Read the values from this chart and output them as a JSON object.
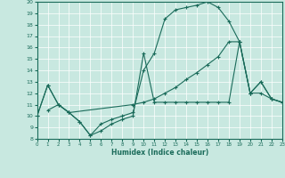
{
  "xlabel": "Humidex (Indice chaleur)",
  "xlim": [
    0,
    23
  ],
  "ylim": [
    8,
    20
  ],
  "xticks": [
    0,
    1,
    2,
    3,
    4,
    5,
    6,
    7,
    8,
    9,
    10,
    11,
    12,
    13,
    14,
    15,
    16,
    17,
    18,
    19,
    20,
    21,
    22,
    23
  ],
  "yticks": [
    8,
    9,
    10,
    11,
    12,
    13,
    14,
    15,
    16,
    17,
    18,
    19,
    20
  ],
  "bg_color": "#c8e8e0",
  "line_color": "#1a6b5a",
  "grid_color": "#ffffff",
  "line1_x": [
    0,
    1,
    2,
    3,
    4,
    5,
    6,
    7,
    8,
    9,
    10,
    11,
    12,
    13,
    14,
    15,
    16,
    17,
    18,
    19,
    20,
    21,
    22,
    23
  ],
  "line1_y": [
    10,
    12.7,
    11,
    10.3,
    9.5,
    8.3,
    8.7,
    9.3,
    9.7,
    10.0,
    15.5,
    11.2,
    11.2,
    11.2,
    11.2,
    11.2,
    11.2,
    11.2,
    11.2,
    16.5,
    12.0,
    12.0,
    11.5,
    11.2
  ],
  "line2_x": [
    0,
    1,
    2,
    3,
    4,
    5,
    6,
    7,
    8,
    9,
    10,
    11,
    12,
    13,
    14,
    15,
    16,
    17,
    18,
    19,
    20,
    21,
    22,
    23
  ],
  "line2_y": [
    10,
    12.7,
    11,
    10.3,
    9.5,
    8.3,
    9.3,
    9.7,
    10.0,
    10.3,
    14.0,
    15.5,
    18.5,
    19.3,
    19.5,
    19.7,
    20.0,
    19.5,
    18.3,
    16.5,
    12.0,
    13.0,
    11.5,
    11.2
  ],
  "line3_x": [
    1,
    2,
    3,
    9,
    10,
    11,
    12,
    13,
    14,
    15,
    16,
    17,
    18,
    19,
    20,
    21,
    22,
    23
  ],
  "line3_y": [
    10.5,
    11.0,
    10.3,
    11.0,
    11.2,
    11.5,
    12.0,
    12.5,
    13.2,
    13.8,
    14.5,
    15.2,
    16.5,
    16.5,
    12.0,
    13.0,
    11.5,
    11.2
  ]
}
